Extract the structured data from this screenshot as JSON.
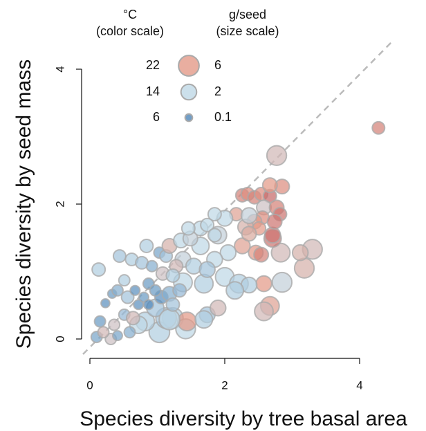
{
  "chart_data": {
    "type": "bubble",
    "xlabel": "Species diversity by tree basal area",
    "ylabel": "Species diversity by seed mass",
    "xlim": [
      0,
      4
    ],
    "ylim": [
      0,
      4
    ],
    "xticks": [
      0,
      2,
      4
    ],
    "yticks": [
      0,
      2,
      4
    ],
    "color_legend": {
      "title": "°C",
      "subtitle": "(color scale)",
      "values": [
        22,
        14,
        6
      ],
      "colors": [
        "#e39a88",
        "#bfd8e6",
        "#4f86b8"
      ]
    },
    "size_legend": {
      "title": "g/seed",
      "subtitle": "(size scale)",
      "values": [
        6,
        2,
        0.1
      ]
    },
    "x": [
      4.28,
      2.77,
      2.85,
      3.3,
      3.18,
      3.12,
      2.67,
      2.58,
      2.58,
      2.83,
      2.71,
      2.71,
      2.26,
      2.34,
      2.44,
      2.54,
      2.67,
      2.85,
      2.67,
      2.58,
      2.77,
      2.82,
      2.56,
      2.44,
      2.31,
      2.17,
      2.51,
      2.74,
      2.46,
      2.54,
      2.26,
      2.36,
      1.03,
      1.23,
      1.42,
      1.13,
      0.82,
      0.72,
      0.97,
      1.38,
      1.44,
      1.18,
      1.69,
      1.9,
      1.64,
      2.0,
      2.36,
      2.05,
      2.0,
      2.21,
      2.36,
      1.74,
      1.69,
      1.9,
      2.15,
      1.85,
      1.38,
      1.54,
      1.74,
      1.85,
      0.13,
      0.15,
      0.1,
      0.31,
      0.2,
      0.23,
      0.33,
      0.41,
      0.44,
      0.51,
      0.62,
      0.77,
      0.84,
      0.92,
      1.03,
      1.13,
      0.87,
      0.72,
      0.8,
      0.56,
      0.67,
      0.51,
      0.59,
      0.36,
      0.41,
      1.06,
      1.18,
      1.23,
      1.33,
      1.18,
      1.35,
      1.49,
      1.28,
      1.08,
      0.64,
      0.97,
      0.87,
      1.23,
      1.64,
      1.46,
      1.74,
      1.85
    ],
    "values": [
      3.13,
      2.72,
      0.84,
      1.33,
      1.05,
      1.28,
      0.49,
      0.41,
      0.82,
      1.28,
      1.49,
      1.54,
      2.13,
      2.15,
      2.1,
      2.15,
      2.12,
      2.26,
      2.28,
      1.95,
      1.95,
      1.85,
      1.8,
      1.74,
      1.66,
      1.85,
      1.64,
      1.74,
      1.28,
      1.25,
      1.38,
      1.56,
      0.1,
      0.31,
      0.15,
      0.31,
      0.26,
      0.21,
      0.46,
      0.84,
      0.26,
      0.29,
      0.82,
      1.54,
      1.38,
      1.79,
      1.83,
      1.28,
      0.92,
      0.82,
      0.8,
      0.36,
      0.29,
      0.46,
      0.72,
      1.18,
      1.18,
      1.08,
      1.03,
      1.85,
      1.03,
      0.26,
      0.03,
      0.0,
      0.1,
      0.53,
      0.67,
      0.72,
      1.23,
      0.87,
      1.18,
      1.13,
      1.38,
      1.08,
      1.28,
      1.23,
      0.82,
      0.51,
      0.62,
      0.62,
      0.72,
      0.36,
      0.1,
      0.21,
      0.05,
      0.62,
      0.67,
      0.51,
      0.72,
      1.38,
      1.46,
      1.49,
      1.08,
      0.97,
      0.31,
      0.72,
      0.51,
      0.94,
      1.64,
      1.64,
      1.69,
      1.54
    ],
    "sizes": [
      0.8,
      5,
      5,
      5,
      5,
      2,
      4,
      4,
      2,
      4,
      3,
      2,
      1,
      1,
      1,
      1,
      1,
      1.5,
      1.5,
      1.5,
      1.5,
      1,
      1,
      1.5,
      2,
      1,
      1,
      1.5,
      1.5,
      1.5,
      2,
      1.5,
      6,
      6,
      5,
      6,
      4,
      3,
      3,
      4,
      4,
      6,
      4,
      3,
      3,
      2,
      2,
      2,
      4,
      4,
      2,
      2,
      3,
      2,
      3,
      2,
      2,
      2,
      2,
      1,
      1,
      0.5,
      0.5,
      0.5,
      0.5,
      0.2,
      0.2,
      0.5,
      0.8,
      0.5,
      0.8,
      0.8,
      1,
      0.5,
      0.5,
      0.8,
      0.5,
      0.3,
      0.3,
      0.8,
      0.3,
      0.5,
      0.5,
      0.5,
      0.3,
      1,
      1.5,
      1,
      1,
      1.5,
      1.5,
      1.5,
      1,
      1,
      1,
      0.5,
      0.3,
      1,
      1.5,
      1,
      1,
      1
    ],
    "temperatures": [
      24,
      18,
      15,
      18,
      19,
      19,
      21,
      18,
      22,
      18,
      25,
      25,
      24,
      23,
      24,
      23,
      26,
      23,
      22,
      17,
      24,
      25,
      23,
      22,
      19,
      21,
      22,
      25,
      22,
      24,
      21,
      20,
      13,
      13,
      14,
      12,
      13,
      14,
      12,
      14,
      22,
      14,
      13,
      15,
      14,
      14,
      15,
      14,
      14,
      13,
      13,
      12,
      13,
      18,
      13,
      14,
      15,
      13,
      12,
      14,
      13,
      8,
      9,
      17,
      18,
      7,
      8,
      10,
      12,
      13,
      13,
      12,
      13,
      10,
      9,
      12,
      8,
      7,
      8,
      12,
      7,
      11,
      10,
      17,
      9,
      7,
      10,
      12,
      11,
      19,
      14,
      15,
      18,
      17,
      18,
      8,
      6,
      13,
      14,
      14,
      14,
      14
    ]
  }
}
